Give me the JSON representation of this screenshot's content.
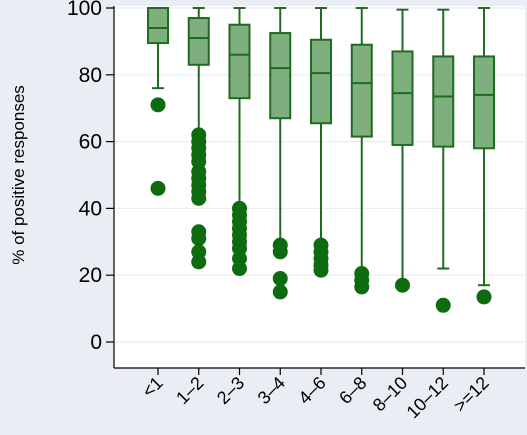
{
  "chart_data": {
    "type": "box",
    "title": "",
    "xlabel": "",
    "ylabel": "% of positive responses",
    "ylim": [
      0,
      100
    ],
    "yticks": [
      "0",
      "20",
      "40",
      "60",
      "80",
      "100"
    ],
    "grid": true,
    "colors": {
      "box_fill": "#7fae7f",
      "box_stroke": "#1f6b1f",
      "outlier": "#0f6b0f",
      "plot_bg": "#ffffff",
      "page_bg": "#e8eef4",
      "grid": "#e6eef5"
    },
    "categories": [
      "<1",
      "1–2",
      "2–3",
      "3–4",
      "4–6",
      "6–8",
      "8–10",
      "10–12",
      ">=12"
    ],
    "boxes": [
      {
        "q1": 89.5,
        "median": 94.0,
        "q3": 100.0,
        "whisker_low": 76.0,
        "whisker_high": 100.0,
        "outliers": [
          71,
          46
        ]
      },
      {
        "q1": 83.0,
        "median": 91.0,
        "q3": 97.0,
        "whisker_low": 63.0,
        "whisker_high": 100.0,
        "outliers": [
          62,
          60,
          58,
          56,
          54,
          51,
          49,
          47,
          45,
          43,
          33,
          31,
          27,
          24
        ]
      },
      {
        "q1": 73.0,
        "median": 86.0,
        "q3": 95.0,
        "whisker_low": 41.0,
        "whisker_high": 100.0,
        "outliers": [
          40,
          38,
          36,
          34,
          32,
          30,
          28,
          25,
          22
        ]
      },
      {
        "q1": 67.0,
        "median": 82.0,
        "q3": 92.5,
        "whisker_low": 30.0,
        "whisker_high": 100.0,
        "outliers": [
          29,
          27,
          19,
          15
        ]
      },
      {
        "q1": 65.5,
        "median": 80.5,
        "q3": 90.5,
        "whisker_low": 29.5,
        "whisker_high": 100.0,
        "outliers": [
          29,
          27,
          25,
          23,
          21.5
        ]
      },
      {
        "q1": 61.5,
        "median": 77.5,
        "q3": 89.0,
        "whisker_low": 21.5,
        "whisker_high": 100.0,
        "outliers": [
          20.5,
          18.5,
          16.5
        ]
      },
      {
        "q1": 59.0,
        "median": 74.5,
        "q3": 87.0,
        "whisker_low": 18.0,
        "whisker_high": 99.5,
        "outliers": [
          17
        ]
      },
      {
        "q1": 58.5,
        "median": 73.5,
        "q3": 85.5,
        "whisker_low": 22.0,
        "whisker_high": 99.5,
        "outliers": [
          11
        ]
      },
      {
        "q1": 58.0,
        "median": 74.0,
        "q3": 85.5,
        "whisker_low": 17.0,
        "whisker_high": 100.0,
        "outliers": [
          13.5
        ]
      }
    ]
  }
}
